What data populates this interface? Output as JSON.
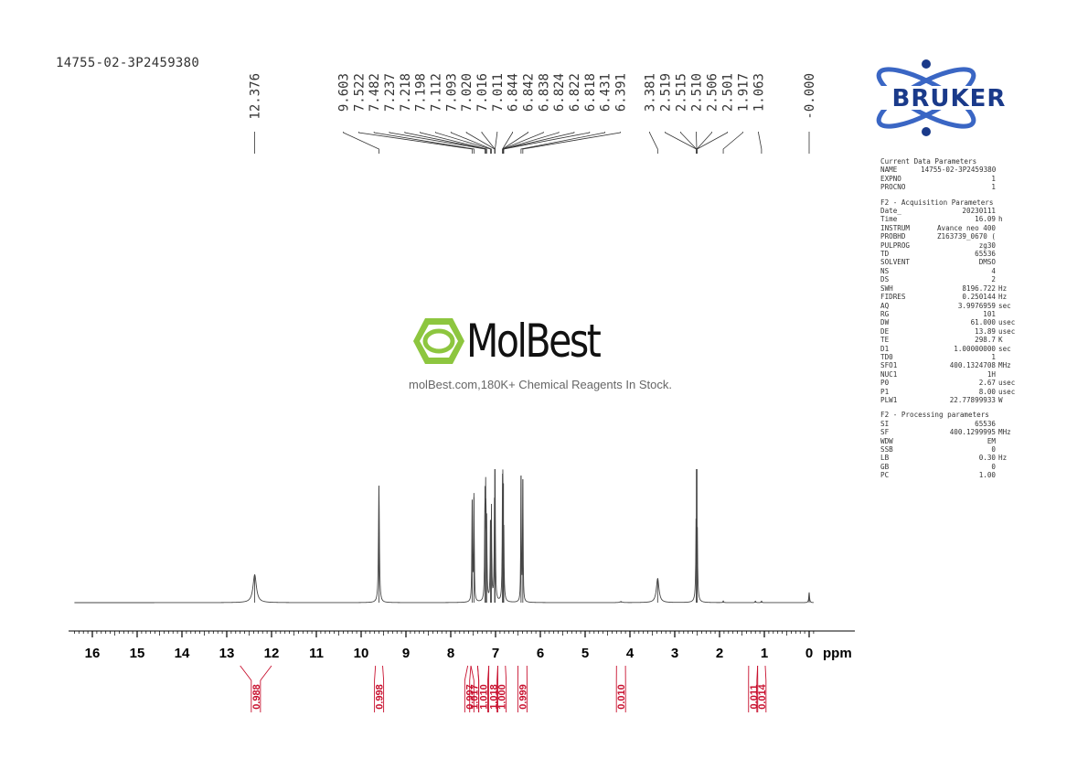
{
  "sample_id": "14755-02-3P2459380",
  "brand": {
    "name": "BRUKER",
    "color": "#1a3a8a",
    "accent": "#3a66c4"
  },
  "watermark": {
    "name": "MolBest",
    "tagline": "molBest.com,180K+ Chemical Reagents In Stock.",
    "color": "#8dc63f"
  },
  "parameters": [
    {
      "heading": "Current Data Parameters",
      "rows": [
        [
          "NAME",
          "14755-02-3P2459380",
          ""
        ],
        [
          "EXPNO",
          "1",
          ""
        ],
        [
          "PROCNO",
          "1",
          ""
        ]
      ]
    },
    {
      "heading": "F2 - Acquisition Parameters",
      "rows": [
        [
          "Date_",
          "20230111",
          ""
        ],
        [
          "Time",
          "16.09",
          "h"
        ],
        [
          "INSTRUM",
          "Avance neo 400",
          ""
        ],
        [
          "PROBHD",
          "Z163739_0670 (",
          ""
        ],
        [
          "PULPROG",
          "zg30",
          ""
        ],
        [
          "TD",
          "65536",
          ""
        ],
        [
          "SOLVENT",
          "DMSO",
          ""
        ],
        [
          "NS",
          "4",
          ""
        ],
        [
          "DS",
          "2",
          ""
        ],
        [
          "SWH",
          "8196.722",
          "Hz"
        ],
        [
          "FIDRES",
          "0.250144",
          "Hz"
        ],
        [
          "AQ",
          "3.9976959",
          "sec"
        ],
        [
          "RG",
          "101",
          ""
        ],
        [
          "DW",
          "61.000",
          "usec"
        ],
        [
          "DE",
          "13.89",
          "usec"
        ],
        [
          "TE",
          "298.7",
          "K"
        ],
        [
          "D1",
          "1.00000000",
          "sec"
        ],
        [
          "TD0",
          "1",
          ""
        ],
        [
          "SFO1",
          "400.1324708",
          "MHz"
        ],
        [
          "NUC1",
          "1H",
          ""
        ],
        [
          "P0",
          "2.67",
          "usec"
        ],
        [
          "P1",
          "8.00",
          "usec"
        ],
        [
          "PLW1",
          "22.77899933",
          "W"
        ]
      ]
    },
    {
      "heading": "F2 - Processing parameters",
      "rows": [
        [
          "SI",
          "65536",
          ""
        ],
        [
          "SF",
          "400.1299995",
          "MHz"
        ],
        [
          "WDW",
          "EM",
          ""
        ],
        [
          "SSB",
          "0",
          ""
        ],
        [
          "LB",
          "0.30",
          "Hz"
        ],
        [
          "GB",
          "0",
          ""
        ],
        [
          "PC",
          "1.00",
          ""
        ]
      ]
    }
  ],
  "chart_data": {
    "type": "line",
    "xlabel": "ppm",
    "xlim": [
      16.4,
      -0.1
    ],
    "x_ticks": [
      "16",
      "15",
      "14",
      "13",
      "12",
      "11",
      "10",
      "9",
      "8",
      "7",
      "6",
      "5",
      "4",
      "3",
      "2",
      "1",
      "0"
    ],
    "peaks": [
      {
        "ppm": 12.376,
        "height": 0.22,
        "width": 0.045
      },
      {
        "ppm": 9.603,
        "height": 0.92,
        "width": 0.012
      },
      {
        "ppm": 7.522,
        "height": 0.81,
        "width": 0.008
      },
      {
        "ppm": 7.482,
        "height": 0.83,
        "width": 0.008
      },
      {
        "ppm": 7.237,
        "height": 0.78,
        "width": 0.008
      },
      {
        "ppm": 7.218,
        "height": 0.82,
        "width": 0.008
      },
      {
        "ppm": 7.198,
        "height": 0.55,
        "width": 0.008
      },
      {
        "ppm": 7.112,
        "height": 0.62,
        "width": 0.008
      },
      {
        "ppm": 7.093,
        "height": 0.66,
        "width": 0.008
      },
      {
        "ppm": 7.02,
        "height": 0.55,
        "width": 0.008
      },
      {
        "ppm": 7.016,
        "height": 0.6,
        "width": 0.008
      },
      {
        "ppm": 7.011,
        "height": 0.58,
        "width": 0.008
      },
      {
        "ppm": 6.844,
        "height": 0.4,
        "width": 0.008
      },
      {
        "ppm": 6.842,
        "height": 0.38,
        "width": 0.008
      },
      {
        "ppm": 6.838,
        "height": 0.34,
        "width": 0.008
      },
      {
        "ppm": 6.824,
        "height": 0.3,
        "width": 0.008
      },
      {
        "ppm": 6.822,
        "height": 0.28,
        "width": 0.008
      },
      {
        "ppm": 6.818,
        "height": 0.25,
        "width": 0.008
      },
      {
        "ppm": 6.431,
        "height": 1.0,
        "width": 0.007
      },
      {
        "ppm": 6.391,
        "height": 0.97,
        "width": 0.007
      },
      {
        "ppm": 3.381,
        "height": 0.19,
        "width": 0.035
      },
      {
        "ppm": 2.519,
        "height": 0.36,
        "width": 0.008
      },
      {
        "ppm": 2.515,
        "height": 0.52,
        "width": 0.008
      },
      {
        "ppm": 2.51,
        "height": 0.55,
        "width": 0.008
      },
      {
        "ppm": 2.506,
        "height": 0.5,
        "width": 0.008
      },
      {
        "ppm": 2.501,
        "height": 0.3,
        "width": 0.008
      },
      {
        "ppm": 1.917,
        "height": 0.012,
        "width": 0.01
      },
      {
        "ppm": 1.063,
        "height": 0.012,
        "width": 0.01
      },
      {
        "ppm": 1.2,
        "height": 0.012,
        "width": 0.01
      },
      {
        "ppm": 0.0,
        "height": 0.08,
        "width": 0.01
      },
      {
        "ppm": 4.2,
        "height": 0.008,
        "width": 0.03
      }
    ],
    "peak_labels": [
      "12.376",
      "9.603",
      "7.522",
      "7.482",
      "7.237",
      "7.218",
      "7.198",
      "7.112",
      "7.093",
      "7.020",
      "7.016",
      "7.011",
      "6.844",
      "6.842",
      "6.838",
      "6.824",
      "6.822",
      "6.818",
      "6.431",
      "6.391",
      "3.381",
      "2.519",
      "2.515",
      "2.510",
      "2.506",
      "2.501",
      "1.917",
      "1.063",
      "-0.000"
    ],
    "integrals": [
      {
        "value": "0.988",
        "from": 12.7,
        "to": 12.0
      },
      {
        "value": "0.998",
        "from": 9.68,
        "to": 9.52
      },
      {
        "value": "0.997",
        "from": 7.62,
        "to": 7.55
      },
      {
        "value": "1.017",
        "from": 7.55,
        "to": 7.4
      },
      {
        "value": "1.010",
        "from": 7.4,
        "to": 7.15
      },
      {
        "value": "1.018",
        "from": 7.15,
        "to": 6.95
      },
      {
        "value": "1.000",
        "from": 6.95,
        "to": 6.78
      },
      {
        "value": "0.999",
        "from": 6.5,
        "to": 6.3
      },
      {
        "value": "0.010",
        "from": 4.3,
        "to": 4.1
      },
      {
        "value": "0.011",
        "from": 1.35,
        "to": 1.15
      },
      {
        "value": "0.014",
        "from": 1.15,
        "to": 0.98
      }
    ],
    "colors": {
      "spectrum": "#444444",
      "integral": "#c8102e",
      "axis": "#000000"
    }
  }
}
